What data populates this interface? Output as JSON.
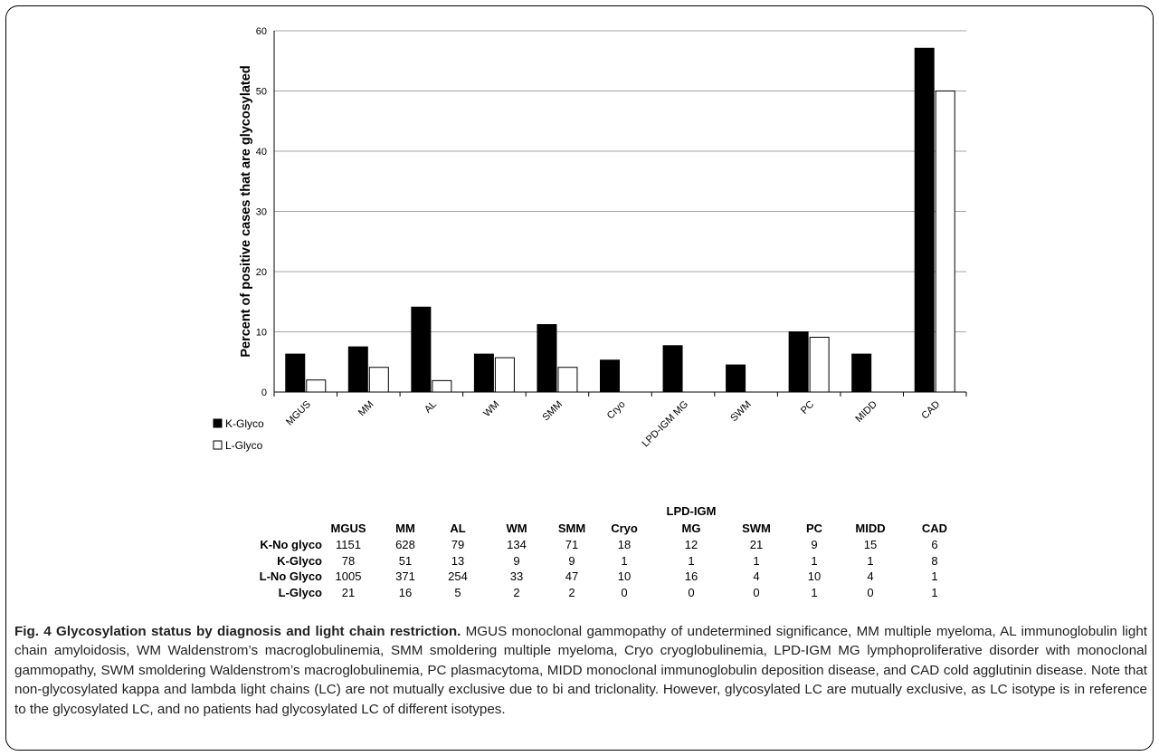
{
  "chart_data": {
    "type": "bar",
    "title": "",
    "xlabel": "",
    "ylabel": "Percent of positive cases that are glycosylated",
    "ylim": [
      0,
      60
    ],
    "yticks": [
      0,
      10,
      20,
      30,
      40,
      50,
      60
    ],
    "grid": true,
    "legend_position": "left-below-axis",
    "categories": [
      "MGUS",
      "MM",
      "AL",
      "WM",
      "SMM",
      "Cryo",
      "LPD-IGM MG",
      "SWM",
      "PC",
      "MIDD",
      "CAD"
    ],
    "series": [
      {
        "name": "K-Glyco",
        "values": [
          6.3,
          7.5,
          14.1,
          6.3,
          11.2,
          5.3,
          7.7,
          4.5,
          10.0,
          6.3,
          57.1
        ]
      },
      {
        "name": "L-Glyco",
        "values": [
          2.0,
          4.1,
          1.9,
          5.7,
          4.1,
          0,
          0,
          0,
          9.1,
          0,
          50.0
        ]
      }
    ]
  },
  "colors": {
    "k_glyco": "#000000",
    "l_glyco": "#ffffff",
    "grid": "#a6a6a6",
    "axis": "#000000"
  },
  "table": {
    "group_header": "LPD-IGM",
    "columns": [
      "MGUS",
      "MM",
      "AL",
      "WM",
      "SMM",
      "Cryo",
      "MG",
      "SWM",
      "PC",
      "MIDD",
      "CAD"
    ],
    "rows": [
      {
        "label": "K-No glyco",
        "values": [
          "1151",
          "628",
          "79",
          "134",
          "71",
          "18",
          "12",
          "21",
          "9",
          "15",
          "6"
        ]
      },
      {
        "label": "K-Glyco",
        "values": [
          "78",
          "51",
          "13",
          "9",
          "9",
          "1",
          "1",
          "1",
          "1",
          "1",
          "8"
        ]
      },
      {
        "label": "L-No Glyco",
        "values": [
          "1005",
          "371",
          "254",
          "33",
          "47",
          "10",
          "16",
          "4",
          "10",
          "4",
          "1"
        ]
      },
      {
        "label": "L-Glyco",
        "values": [
          "21",
          "16",
          "5",
          "2",
          "2",
          "0",
          "0",
          "0",
          "1",
          "0",
          "1"
        ]
      }
    ]
  },
  "caption": {
    "title": "Fig. 4 Glycosylation status by diagnosis and light chain restriction.",
    "text": "MGUS monoclonal gammopathy of undetermined significance, MM multiple myeloma, AL immunoglobulin light chain amyloidosis, WM Waldenstrom’s macroglobulinemia, SMM smoldering multiple myeloma, Cryo cryoglobulinemia, LPD-IGM MG lymphoproliferative disorder with monoclonal gammopathy, SWM smoldering Waldenstrom’s macroglobulinemia, PC plasmacytoma, MIDD monoclonal immunoglobulin deposition disease, and CAD cold agglutinin disease. Note that non-glycosylated kappa and lambda light chains (LC) are not mutually exclusive due to bi and triclonality. However, glycosylated LC are mutually exclusive, as LC isotype is in reference to the glycosylated LC, and no patients had glycosylated LC of different isotypes."
  }
}
